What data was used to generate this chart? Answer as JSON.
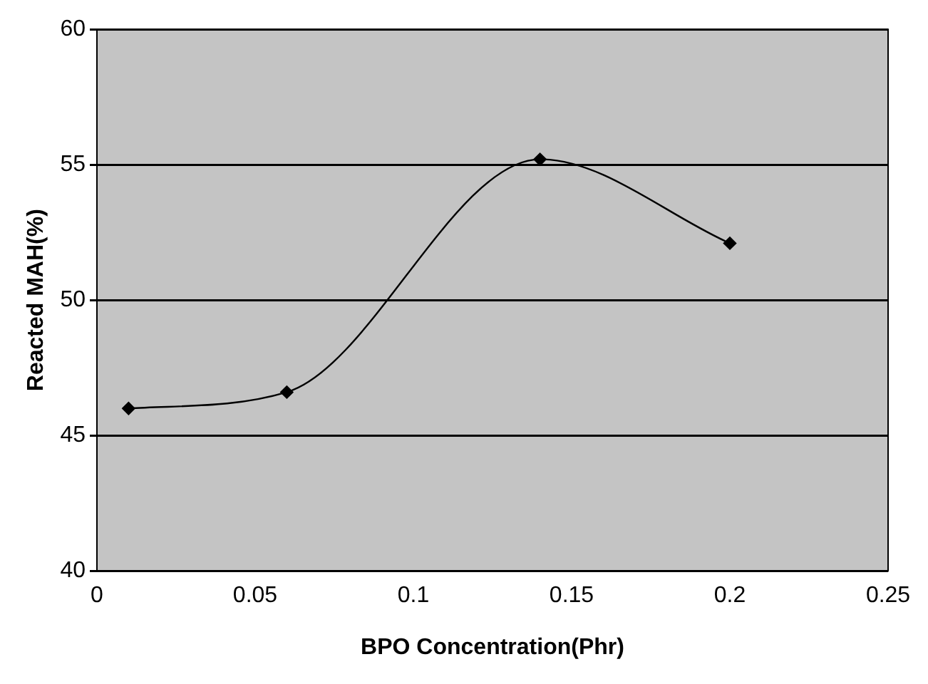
{
  "chart_data": {
    "type": "line",
    "xlabel": "BPO Concentration(Phr)",
    "ylabel": "Reacted MAH(%)",
    "x": [
      0.01,
      0.06,
      0.14,
      0.2
    ],
    "series": [
      {
        "color": "#000000",
        "values": [
          46,
          46.6,
          55.2,
          52.1
        ]
      }
    ],
    "xlim": [
      0,
      0.25
    ],
    "xticks": [
      0,
      0.05,
      0.1,
      0.15,
      0.2,
      0.25
    ],
    "ylim": [
      40,
      60
    ],
    "yticks": [
      40,
      45,
      50,
      55,
      60
    ],
    "grid": "y",
    "marker": "diamond",
    "line_style": "solid",
    "legend": false
  }
}
